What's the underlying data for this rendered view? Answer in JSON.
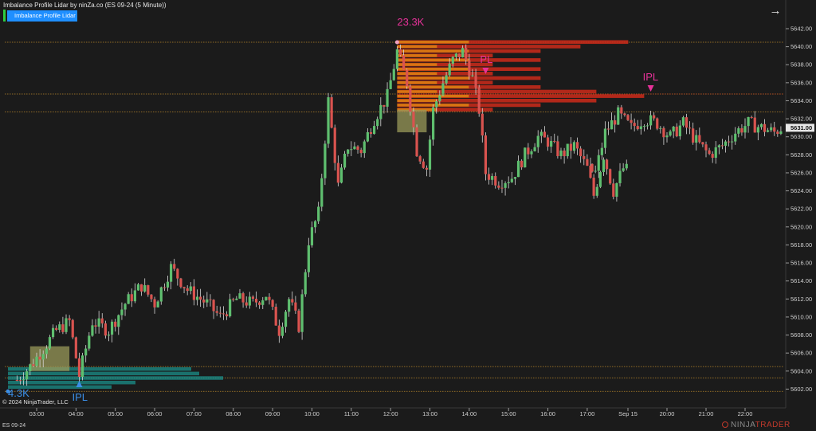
{
  "header": {
    "title": "Imbalance Profile Lidar by ninZa.co (ES 09-24 (5 Minute))",
    "indicator_button": "Imbalance Profile Lidar",
    "arrow_icon": "arrow-right-icon"
  },
  "footer": {
    "copyright": "© 2024 NinjaTrader, LLC",
    "instrument": "ES 09-24",
    "logo_left": "NINJA",
    "logo_right": "TRADER"
  },
  "colors": {
    "background": "#1b1b1b",
    "up_candle": "#5fbf6f",
    "down_candle": "#d9534f",
    "price_marker": "#e8e8e8",
    "level_line": "#b8862b",
    "bull_profile": "#1b8f8a",
    "bear_profile": "#cc2a1a",
    "bear_profile_inner": "#e08a10",
    "ipl_bull": "#3b8fe8",
    "ipl_bear": "#e8329a"
  },
  "chart_data": {
    "type": "candlestick",
    "instrument": "ES 09-24",
    "timeframe": "5 Minute",
    "x_ticks": [
      "03:00",
      "04:00",
      "05:00",
      "06:00",
      "07:00",
      "08:00",
      "09:00",
      "10:00",
      "11:00",
      "12:00",
      "13:00",
      "14:00",
      "15:00",
      "16:00",
      "17:00",
      "Sep 15",
      "20:00",
      "21:00",
      "22:00"
    ],
    "y_ticks": [
      "5642.00",
      "5640.00",
      "5638.00",
      "5636.00",
      "5634.00",
      "5632.00",
      "5630.00",
      "5628.00",
      "5626.00",
      "5624.00",
      "5622.00",
      "5620.00",
      "5618.00",
      "5616.00",
      "5614.00",
      "5612.00",
      "5610.00",
      "5608.00",
      "5606.00",
      "5604.00",
      "5602.00"
    ],
    "y_range": [
      5600.5,
      5643.5
    ],
    "current_price": "5631.00",
    "levels": [
      5640.5,
      5634.75,
      5632.75,
      5604.5,
      5603.25,
      5601.75
    ],
    "bull_profile": {
      "label": "4.3K",
      "ipl_label": "IPL",
      "range": [
        5601.75,
        5604.5
      ],
      "imbalance_zone": {
        "time": [
          "02:50",
          "03:50"
        ],
        "price": [
          5604.0,
          5606.75
        ]
      },
      "ipl_time": "04:05"
    },
    "bear_profile": {
      "label": "23.3K",
      "ipl_label": "PL",
      "range": [
        5632.75,
        5640.5
      ],
      "imbalance_zone": {
        "time": [
          "12:10",
          "12:55"
        ],
        "price": [
          5630.5,
          5633.0
        ]
      },
      "ipl_time": "14:25"
    },
    "bear_ipl_second": {
      "label": "IPL",
      "time": "19:35",
      "price": 5634.75
    },
    "key_points": [
      {
        "time": "02:30",
        "price": 5603.0
      },
      {
        "time": "02:50",
        "price": 5604.5
      },
      {
        "time": "03:10",
        "price": 5606.5
      },
      {
        "time": "03:30",
        "price": 5608.5
      },
      {
        "time": "03:50",
        "price": 5609.5
      },
      {
        "time": "04:05",
        "price": 5603.5
      },
      {
        "time": "04:25",
        "price": 5609.5
      },
      {
        "time": "04:50",
        "price": 5608.5
      },
      {
        "time": "05:15",
        "price": 5611.5
      },
      {
        "time": "05:40",
        "price": 5613.5
      },
      {
        "time": "06:00",
        "price": 5611.5
      },
      {
        "time": "06:25",
        "price": 5615.5
      },
      {
        "time": "06:50",
        "price": 5613.0
      },
      {
        "time": "07:20",
        "price": 5611.5
      },
      {
        "time": "07:40",
        "price": 5610.0
      },
      {
        "time": "08:05",
        "price": 5612.0
      },
      {
        "time": "08:30",
        "price": 5611.5
      },
      {
        "time": "08:50",
        "price": 5612.5
      },
      {
        "time": "09:10",
        "price": 5608.5
      },
      {
        "time": "09:25",
        "price": 5612.0
      },
      {
        "time": "09:40",
        "price": 5609.0
      },
      {
        "time": "09:55",
        "price": 5618.5
      },
      {
        "time": "10:10",
        "price": 5621.5
      },
      {
        "time": "10:25",
        "price": 5634.0
      },
      {
        "time": "10:40",
        "price": 5624.5
      },
      {
        "time": "10:55",
        "price": 5629.0
      },
      {
        "time": "11:15",
        "price": 5628.5
      },
      {
        "time": "11:35",
        "price": 5632.0
      },
      {
        "time": "11:55",
        "price": 5634.5
      },
      {
        "time": "12:10",
        "price": 5639.5
      },
      {
        "time": "12:25",
        "price": 5636.0
      },
      {
        "time": "12:40",
        "price": 5628.5
      },
      {
        "time": "12:55",
        "price": 5626.5
      },
      {
        "time": "13:05",
        "price": 5633.0
      },
      {
        "time": "13:20",
        "price": 5636.0
      },
      {
        "time": "13:35",
        "price": 5638.5
      },
      {
        "time": "13:50",
        "price": 5639.5
      },
      {
        "time": "14:05",
        "price": 5636.5
      },
      {
        "time": "14:15",
        "price": 5633.0
      },
      {
        "time": "14:25",
        "price": 5626.0
      },
      {
        "time": "14:45",
        "price": 5625.0
      },
      {
        "time": "15:05",
        "price": 5625.5
      },
      {
        "time": "15:25",
        "price": 5628.0
      },
      {
        "time": "15:45",
        "price": 5630.0
      },
      {
        "time": "16:00",
        "price": 5629.5
      },
      {
        "time": "16:20",
        "price": 5628.0
      },
      {
        "time": "16:40",
        "price": 5629.0
      },
      {
        "time": "17:00",
        "price": 5626.5
      },
      {
        "time": "17:10",
        "price": 5623.5
      },
      {
        "time": "17:25",
        "price": 5628.0
      },
      {
        "time": "17:40",
        "price": 5624.0
      },
      {
        "time": "17:55",
        "price": 5626.5
      },
      {
        "time": "18:10",
        "price": 5626.0
      },
      {
        "time": "18:25",
        "price": 5630.5
      },
      {
        "time": "18:45",
        "price": 5632.5
      },
      {
        "time": "19:05",
        "price": 5631.0
      },
      {
        "time": "19:25",
        "price": 5632.0
      },
      {
        "time": "19:45",
        "price": 5631.5
      },
      {
        "time": "20:05",
        "price": 5630.0
      },
      {
        "time": "20:25",
        "price": 5631.5
      },
      {
        "time": "20:45",
        "price": 5629.5
      },
      {
        "time": "21:05",
        "price": 5628.0
      },
      {
        "time": "21:25",
        "price": 5629.0
      },
      {
        "time": "21:45",
        "price": 5630.5
      },
      {
        "time": "22:05",
        "price": 5631.5
      },
      {
        "time": "22:25",
        "price": 5631.0
      },
      {
        "time": "22:45",
        "price": 5630.5
      },
      {
        "time": "22:55",
        "price": 5631.0
      }
    ]
  }
}
